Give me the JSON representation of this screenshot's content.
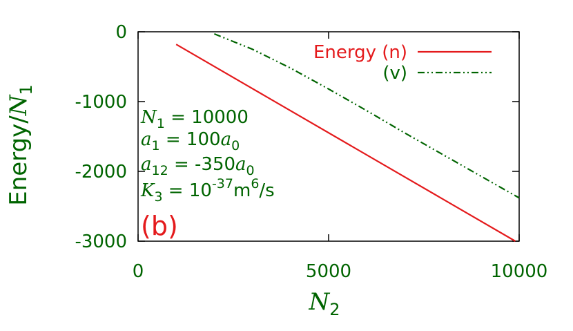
{
  "chart_data": {
    "type": "line",
    "xlabel": [
      "N",
      "2"
    ],
    "ylabel": [
      "Energy/",
      "N",
      "1"
    ],
    "series": [
      {
        "name": "Energy (n)",
        "color": "#e41a1c",
        "dash": "solid",
        "x": [
          1000,
          9900
        ],
        "values": [
          -180,
          -3000
        ]
      },
      {
        "name": "(v)",
        "color": "#006400",
        "dash": "dashdot",
        "x": [
          2000,
          3000,
          4000,
          5000,
          6000,
          7000,
          8000,
          9000,
          10000
        ],
        "values": [
          -30,
          -250,
          -520,
          -820,
          -1130,
          -1450,
          -1760,
          -2070,
          -2380
        ]
      }
    ],
    "annotations": [
      [
        "N",
        "1",
        " = 10000"
      ],
      [
        "a",
        "1",
        " = 100",
        "a",
        "0"
      ],
      [
        "a",
        "12",
        " = -350",
        "a",
        "0"
      ],
      [
        "K",
        "3",
        " = 10",
        "-37",
        "m",
        "6",
        "/s"
      ]
    ],
    "panel_label": "(b)",
    "xlim": [
      0,
      10000
    ],
    "xticks": [
      0,
      5000,
      10000
    ],
    "ylim": [
      -3000,
      0
    ],
    "yticks": [
      0,
      -1000,
      -2000,
      -3000
    ],
    "grid": false,
    "legend": "upper right"
  }
}
